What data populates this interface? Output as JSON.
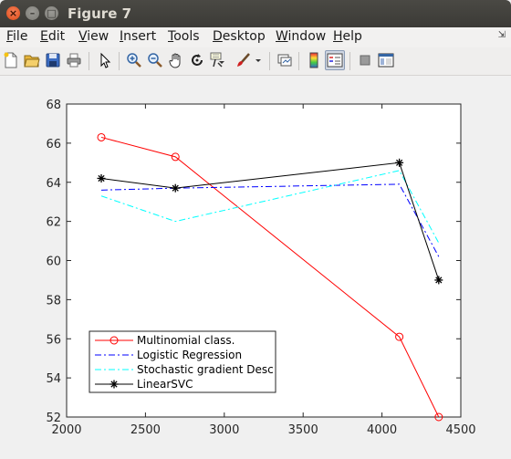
{
  "window": {
    "title": "Figure 7"
  },
  "menu": [
    "File",
    "Edit",
    "View",
    "Insert",
    "Tools",
    "Desktop",
    "Window",
    "Help"
  ],
  "toolbar_icons": [
    "new-figure-icon",
    "open-file-icon",
    "save-icon",
    "print-icon",
    "edit-plot-arrow-icon",
    "zoom-in-icon",
    "zoom-out-icon",
    "pan-hand-icon",
    "rotate-3d-icon",
    "data-cursor-icon",
    "brush-icon",
    "brush-dropdown-icon",
    "link-plot-icon",
    "insert-colorbar-icon",
    "insert-legend-icon",
    "hide-plot-tools-icon",
    "show-plot-tools-icon"
  ],
  "chart_data": {
    "type": "line",
    "xlim": [
      2000,
      4500
    ],
    "ylim": [
      52,
      68
    ],
    "xticks": [
      2000,
      2500,
      3000,
      3500,
      4000,
      4500
    ],
    "yticks": [
      52,
      54,
      56,
      58,
      60,
      62,
      64,
      66,
      68
    ],
    "grid": false,
    "legend_position": "bottom-left",
    "series": [
      {
        "name": "Multinomial class.",
        "color": "#ff0000",
        "style": "solid",
        "marker": "circle",
        "x": [
          2220,
          2690,
          4110,
          4360
        ],
        "y": [
          66.3,
          65.3,
          56.1,
          52.0
        ]
      },
      {
        "name": "Logistic Regression",
        "color": "#0000ff",
        "style": "dashdot",
        "marker": "none",
        "x": [
          2220,
          2690,
          4110,
          4360
        ],
        "y": [
          63.6,
          63.7,
          63.9,
          60.2
        ]
      },
      {
        "name": "Stochastic gradient Desc",
        "color": "#00ffff",
        "style": "dashdot",
        "marker": "none",
        "x": [
          2220,
          2690,
          4110,
          4360
        ],
        "y": [
          63.3,
          62.0,
          64.6,
          60.9
        ]
      },
      {
        "name": "LinearSVC",
        "color": "#000000",
        "style": "solid",
        "marker": "asterisk",
        "x": [
          2220,
          2690,
          4110,
          4360
        ],
        "y": [
          64.2,
          63.7,
          65.0,
          59.0
        ]
      }
    ]
  }
}
